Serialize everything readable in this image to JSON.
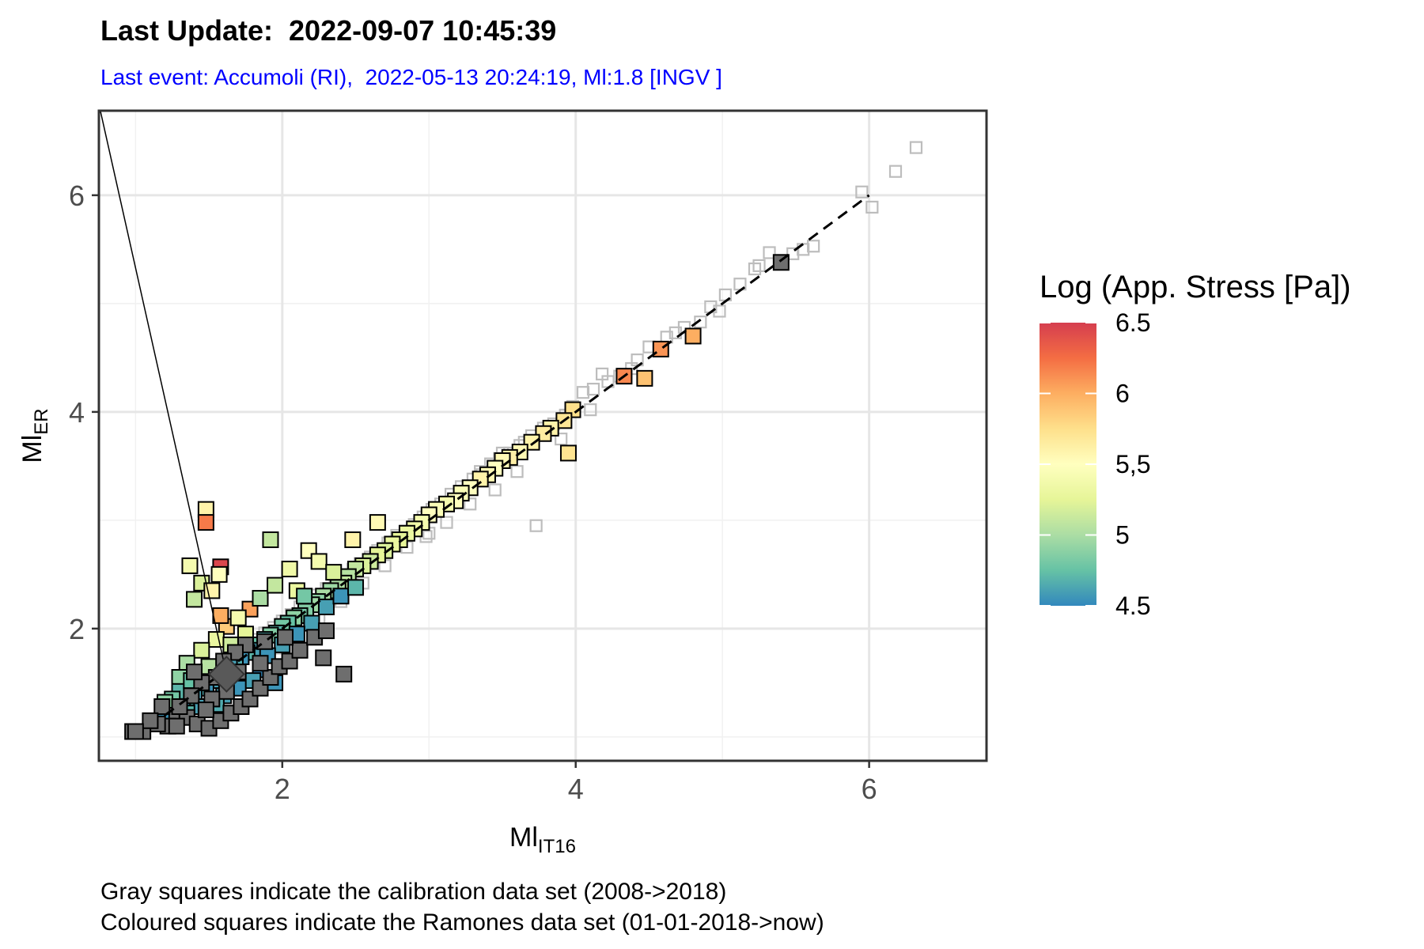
{
  "header": {
    "title": "Last Update:  2022-09-07 10:45:39",
    "subtitle": "Last event: Accumoli (RI),  2022-05-13 20:24:19, Ml:1.8 [INGV ]"
  },
  "footnotes": [
    "Gray squares indicate the calibration data set (2008->2018)",
    "Coloured squares indicate the Ramones data set (01-01-2018->now)"
  ],
  "chart_data": {
    "type": "scatter",
    "xlabel": "Ml",
    "xlabel_sub": "IT16",
    "ylabel": "Ml",
    "ylabel_sub": "ER",
    "xlim": [
      0.75,
      6.8
    ],
    "ylim": [
      0.78,
      6.78
    ],
    "x_ticks": [
      2,
      4,
      6
    ],
    "y_ticks": [
      2,
      4,
      6
    ],
    "x_tick_labels": [
      "2",
      "4",
      "6"
    ],
    "y_tick_labels": [
      "2",
      "4",
      "6"
    ],
    "grid": true,
    "reference_line": {
      "style": "dashed",
      "color": "#000000",
      "from": [
        1.2,
        1.2
      ],
      "to": [
        6.0,
        6.0
      ]
    },
    "last_event": {
      "point": [
        1.62,
        1.58
      ],
      "annotation_anchor": [
        0.76,
        6.78
      ],
      "marker": "diamond",
      "color": "#595959"
    },
    "legend": {
      "title": "Log (App. Stress [Pa])",
      "placement": "right",
      "range": [
        4.5,
        6.5
      ],
      "tick_values": [
        6.5,
        6,
        5.5,
        5,
        4.5
      ],
      "tick_labels": [
        "6.5",
        "6",
        "5,5",
        "5",
        "4.5"
      ],
      "colors": [
        "#3288bd",
        "#66c2a5",
        "#abdda4",
        "#e6f598",
        "#ffffbf",
        "#fee08b",
        "#fdae61",
        "#f46d43",
        "#d53e4f"
      ]
    },
    "series": [
      {
        "style": "gray-hollow",
        "points": [
          [
            6.32,
            6.44
          ],
          [
            6.18,
            6.22
          ],
          [
            6.02,
            5.89
          ],
          [
            5.95,
            6.03
          ],
          [
            5.62,
            5.53
          ],
          [
            5.55,
            5.5
          ],
          [
            5.48,
            5.46
          ],
          [
            5.32,
            5.47
          ],
          [
            5.25,
            5.35
          ],
          [
            5.22,
            5.32
          ],
          [
            5.12,
            5.18
          ],
          [
            5.02,
            5.08
          ],
          [
            4.98,
            4.93
          ],
          [
            4.92,
            4.97
          ],
          [
            4.85,
            4.83
          ],
          [
            4.74,
            4.78
          ],
          [
            4.68,
            4.73
          ],
          [
            4.62,
            4.69
          ],
          [
            4.5,
            4.6
          ],
          [
            4.42,
            4.48
          ],
          [
            4.38,
            4.4
          ],
          [
            4.3,
            4.33
          ],
          [
            4.22,
            4.28
          ],
          [
            4.18,
            4.35
          ],
          [
            4.12,
            4.21
          ],
          [
            4.05,
            4.18
          ],
          [
            3.98,
            4.05
          ],
          [
            3.93,
            3.97
          ],
          [
            3.85,
            3.89
          ],
          [
            3.78,
            3.85
          ],
          [
            3.7,
            3.78
          ],
          [
            3.62,
            3.69
          ],
          [
            3.55,
            3.62
          ],
          [
            3.48,
            3.57
          ],
          [
            3.42,
            3.52
          ],
          [
            3.36,
            3.42
          ],
          [
            3.3,
            3.38
          ],
          [
            3.22,
            3.31
          ],
          [
            3.15,
            3.24
          ],
          [
            3.08,
            3.15
          ],
          [
            3.02,
            3.1
          ],
          [
            2.96,
            3.03
          ],
          [
            2.9,
            2.96
          ],
          [
            2.84,
            2.9
          ],
          [
            2.78,
            2.86
          ],
          [
            2.72,
            2.79
          ],
          [
            2.65,
            2.72
          ],
          [
            2.6,
            2.66
          ],
          [
            2.53,
            2.6
          ],
          [
            2.48,
            2.55
          ],
          [
            2.41,
            2.48
          ],
          [
            2.36,
            2.43
          ],
          [
            2.3,
            2.37
          ],
          [
            2.24,
            2.31
          ],
          [
            2.18,
            2.25
          ],
          [
            2.12,
            2.2
          ],
          [
            2.06,
            2.13
          ],
          [
            2.0,
            2.07
          ],
          [
            1.94,
            2.01
          ],
          [
            1.88,
            1.96
          ],
          [
            1.82,
            1.9
          ],
          [
            1.76,
            1.84
          ],
          [
            1.7,
            1.78
          ],
          [
            1.64,
            1.72
          ],
          [
            1.58,
            1.66
          ],
          [
            1.52,
            1.6
          ],
          [
            1.46,
            1.54
          ],
          [
            1.4,
            1.48
          ],
          [
            1.34,
            1.42
          ],
          [
            1.28,
            1.36
          ],
          [
            1.22,
            1.3
          ],
          [
            3.73,
            2.95
          ],
          [
            2.85,
            2.75
          ],
          [
            2.98,
            2.85
          ],
          [
            3.12,
            2.98
          ],
          [
            3.28,
            3.15
          ],
          [
            3.45,
            3.28
          ],
          [
            3.6,
            3.45
          ],
          [
            2.55,
            2.42
          ],
          [
            2.4,
            2.25
          ],
          [
            2.25,
            2.1
          ],
          [
            2.1,
            1.96
          ],
          [
            1.95,
            1.82
          ],
          [
            3.9,
            3.75
          ],
          [
            4.1,
            4.02
          ],
          [
            2.7,
            2.58
          ],
          [
            3.0,
            2.88
          ],
          [
            3.35,
            3.45
          ],
          [
            3.5,
            3.62
          ],
          [
            3.65,
            3.72
          ]
        ]
      },
      {
        "style": "colored",
        "points": [
          [
            5.4,
            5.38,
            null
          ],
          [
            4.8,
            4.7,
            6.0
          ],
          [
            4.58,
            4.58,
            6.1
          ],
          [
            4.33,
            4.33,
            6.15
          ],
          [
            4.47,
            4.31,
            5.9
          ],
          [
            3.98,
            4.02,
            5.75
          ],
          [
            3.92,
            3.92,
            5.7
          ],
          [
            3.95,
            3.62,
            5.72
          ],
          [
            3.83,
            3.85,
            5.6
          ],
          [
            3.78,
            3.8,
            5.65
          ],
          [
            3.7,
            3.72,
            5.6
          ],
          [
            3.62,
            3.63,
            5.55
          ],
          [
            3.55,
            3.58,
            5.62
          ],
          [
            3.5,
            3.55,
            5.55
          ],
          [
            3.45,
            3.48,
            5.5
          ],
          [
            3.4,
            3.42,
            5.55
          ],
          [
            3.35,
            3.38,
            5.6
          ],
          [
            3.28,
            3.3,
            5.5
          ],
          [
            3.22,
            3.25,
            5.45
          ],
          [
            3.18,
            3.18,
            5.5
          ],
          [
            3.12,
            3.15,
            5.4
          ],
          [
            3.05,
            3.1,
            5.45
          ],
          [
            3.0,
            3.05,
            5.5
          ],
          [
            2.95,
            2.98,
            5.4
          ],
          [
            2.9,
            2.92,
            5.35
          ],
          [
            2.85,
            2.88,
            5.3
          ],
          [
            2.8,
            2.82,
            5.25
          ],
          [
            2.75,
            2.78,
            5.3
          ],
          [
            2.7,
            2.72,
            5.2
          ],
          [
            2.65,
            2.68,
            5.25
          ],
          [
            2.6,
            2.62,
            5.15
          ],
          [
            2.55,
            2.58,
            5.2
          ],
          [
            2.5,
            2.55,
            5.1
          ],
          [
            2.45,
            2.48,
            5.05
          ],
          [
            2.42,
            2.42,
            5.1
          ],
          [
            2.38,
            2.38,
            5.0
          ],
          [
            2.33,
            2.35,
            4.95
          ],
          [
            2.28,
            2.3,
            5.0
          ],
          [
            2.24,
            2.25,
            4.9
          ],
          [
            2.2,
            2.22,
            4.95
          ],
          [
            2.16,
            2.16,
            4.85
          ],
          [
            2.12,
            2.12,
            4.8
          ],
          [
            2.08,
            2.1,
            4.9
          ],
          [
            2.04,
            2.05,
            4.75
          ],
          [
            2.0,
            2.02,
            4.8
          ],
          [
            1.96,
            1.96,
            4.7
          ],
          [
            1.92,
            1.94,
            4.85
          ],
          [
            1.88,
            1.9,
            4.65
          ],
          [
            1.84,
            1.85,
            4.75
          ],
          [
            1.8,
            1.8,
            4.6
          ],
          [
            1.76,
            1.78,
            4.7
          ],
          [
            1.72,
            1.74,
            4.55
          ],
          [
            1.68,
            1.7,
            4.65
          ],
          [
            1.64,
            1.66,
            4.6
          ],
          [
            1.6,
            1.62,
            4.55
          ],
          [
            1.56,
            1.58,
            4.7
          ],
          [
            1.52,
            1.52,
            4.6
          ],
          [
            1.48,
            1.48,
            4.55
          ],
          [
            1.44,
            1.45,
            4.65
          ],
          [
            1.4,
            1.4,
            4.6
          ],
          [
            1.36,
            1.36,
            4.7
          ],
          [
            1.32,
            1.32,
            4.55
          ],
          [
            1.28,
            1.28,
            4.6
          ],
          [
            1.24,
            1.25,
            4.65
          ],
          [
            1.2,
            1.2,
            4.55
          ],
          [
            1.48,
            3.1,
            5.6
          ],
          [
            1.48,
            2.98,
            6.2
          ],
          [
            1.58,
            2.57,
            6.45
          ],
          [
            1.57,
            2.5,
            5.5
          ],
          [
            1.37,
            2.58,
            5.4
          ],
          [
            1.45,
            2.42,
            5.2
          ],
          [
            1.52,
            2.35,
            5.6
          ],
          [
            1.4,
            2.27,
            5.1
          ],
          [
            1.62,
            2.02,
            5.85
          ],
          [
            1.58,
            2.12,
            6.0
          ],
          [
            1.78,
            2.18,
            6.05
          ],
          [
            1.92,
            2.82,
            5.1
          ],
          [
            2.18,
            2.72,
            5.5
          ],
          [
            2.48,
            2.82,
            5.6
          ],
          [
            2.65,
            2.98,
            5.55
          ],
          [
            2.1,
            2.35,
            5.3
          ],
          [
            2.05,
            2.55,
            5.35
          ],
          [
            2.25,
            2.62,
            5.4
          ],
          [
            2.35,
            2.52,
            5.2
          ],
          [
            1.85,
            2.28,
            5.0
          ],
          [
            1.95,
            2.4,
            5.1
          ],
          [
            1.7,
            2.1,
            5.4
          ],
          [
            1.55,
            1.9,
            5.3
          ],
          [
            1.45,
            1.8,
            5.2
          ],
          [
            1.35,
            1.68,
            5.0
          ],
          [
            1.3,
            1.55,
            4.9
          ],
          [
            1.5,
            1.65,
            5.05
          ],
          [
            1.65,
            1.85,
            5.15
          ],
          [
            1.75,
            1.95,
            5.25
          ],
          [
            2.15,
            2.3,
            4.8
          ],
          [
            2.3,
            2.2,
            4.6
          ],
          [
            2.4,
            2.3,
            4.55
          ],
          [
            2.5,
            2.38,
            4.7
          ],
          [
            2.2,
            2.05,
            4.6
          ],
          [
            2.1,
            1.95,
            4.55
          ],
          [
            2.0,
            1.85,
            4.6
          ],
          [
            1.9,
            1.75,
            4.55
          ],
          [
            1.85,
            1.62,
            4.5
          ],
          [
            1.95,
            1.5,
            4.55
          ],
          [
            1.8,
            1.52,
            4.6
          ],
          [
            1.7,
            1.45,
            4.55
          ],
          [
            1.6,
            1.38,
            4.6
          ],
          [
            1.55,
            1.3,
            4.65
          ],
          [
            1.45,
            1.28,
            4.6
          ],
          [
            1.35,
            1.22,
            4.7
          ],
          [
            1.25,
            1.15,
            4.55
          ],
          [
            1.3,
            1.42,
            4.7
          ],
          [
            1.25,
            1.35,
            4.8
          ],
          [
            1.2,
            1.32,
            4.9
          ],
          [
            1.38,
            1.52,
            4.75
          ],
          [
            1.28,
            1.2,
            null
          ],
          [
            1.22,
            1.1,
            null
          ],
          [
            1.15,
            1.12,
            null
          ],
          [
            1.05,
            1.05,
            null
          ],
          [
            0.98,
            1.05,
            null
          ],
          [
            1.35,
            1.18,
            null
          ],
          [
            1.42,
            1.12,
            null
          ],
          [
            1.5,
            1.08,
            null
          ],
          [
            1.58,
            1.15,
            null
          ],
          [
            1.65,
            1.22,
            null
          ],
          [
            1.72,
            1.28,
            null
          ],
          [
            1.78,
            1.35,
            null
          ],
          [
            1.85,
            1.45,
            null
          ],
          [
            1.92,
            1.55,
            null
          ],
          [
            1.98,
            1.65,
            null
          ],
          [
            2.05,
            1.7,
            null
          ],
          [
            2.12,
            1.8,
            null
          ],
          [
            2.22,
            1.92,
            null
          ],
          [
            2.3,
            1.98,
            null
          ],
          [
            1.75,
            1.85,
            null
          ],
          [
            1.68,
            1.78,
            null
          ],
          [
            1.55,
            1.55,
            null
          ],
          [
            1.45,
            1.5,
            null
          ],
          [
            1.38,
            1.38,
            null
          ],
          [
            1.3,
            1.28,
            null
          ],
          [
            1.4,
            1.6,
            null
          ],
          [
            1.6,
            1.7,
            null
          ],
          [
            1.85,
            1.68,
            null
          ],
          [
            1.7,
            1.6,
            null
          ],
          [
            1.88,
            1.88,
            null
          ],
          [
            2.02,
            1.92,
            null
          ],
          [
            2.42,
            1.58,
            null
          ],
          [
            2.28,
            1.73,
            null
          ],
          [
            1.62,
            1.42,
            null
          ],
          [
            1.52,
            1.35,
            null
          ],
          [
            1.48,
            1.25,
            null
          ],
          [
            1.18,
            1.28,
            null
          ],
          [
            1.1,
            1.15,
            null
          ],
          [
            1.0,
            1.05,
            null
          ],
          [
            1.28,
            1.1,
            null
          ]
        ]
      }
    ]
  }
}
